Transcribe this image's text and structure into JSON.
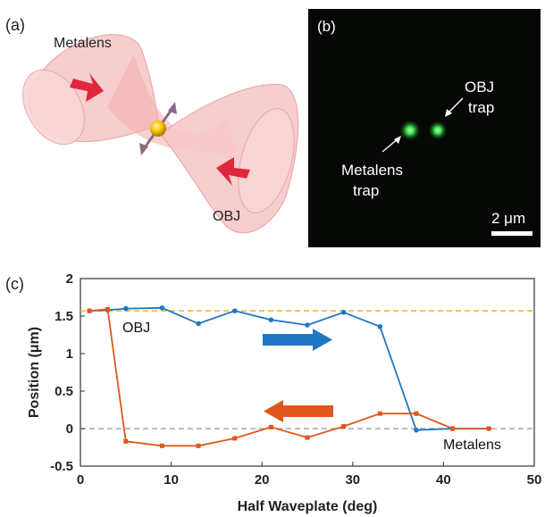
{
  "panels": {
    "a": {
      "label": "(a)",
      "metalens_label": "Metalens",
      "obj_label": "OBJ"
    },
    "b": {
      "label": "(b)",
      "obj_trap_label": [
        "OBJ",
        "trap"
      ],
      "metalens_trap_label": [
        "Metalens",
        "trap"
      ],
      "scale_bar_label": "2 μm"
    },
    "c": {
      "label": "(c)"
    }
  },
  "colors": {
    "obj_series": "#1f77c4",
    "metalens_series": "#e0561c",
    "obj_reference_line": "#f2b600",
    "metalens_reference_line": "#aaaaaa",
    "beam": "#f4b8b8",
    "arrow_red": "#e0283c",
    "trap_green": "#39e04a"
  },
  "chart_data": {
    "type": "line",
    "xlabel": "Half Waveplate (deg)",
    "ylabel": "Position (μm)",
    "xlim": [
      0,
      50
    ],
    "ylim": [
      -0.5,
      2
    ],
    "xticks": [
      0,
      10,
      20,
      30,
      40,
      50
    ],
    "yticks": [
      -0.5,
      0,
      0.5,
      1,
      1.5,
      2
    ],
    "xtick_labels": [
      "0",
      "10",
      "20",
      "30",
      "40",
      "50"
    ],
    "ytick_labels": [
      "-0.5",
      "0",
      "0.5",
      "1",
      "1.5",
      "2"
    ],
    "grid": false,
    "reference_lines": [
      {
        "y": 1.57,
        "style": "dashed",
        "color": "#f2b600"
      },
      {
        "y": 0,
        "style": "dashed",
        "color": "#aaaaaa"
      }
    ],
    "series": [
      {
        "name": "OBJ",
        "color": "#1f77c4",
        "marker": "circle",
        "x": [
          1,
          3,
          5,
          9,
          13,
          17,
          21,
          25,
          29,
          33,
          37,
          41,
          45
        ],
        "y": [
          1.57,
          1.58,
          1.6,
          1.61,
          1.4,
          1.57,
          1.45,
          1.38,
          1.55,
          1.36,
          -0.02,
          0.0,
          0.0
        ],
        "sweep_direction": "increasing"
      },
      {
        "name": "Metalens",
        "color": "#e0561c",
        "marker": "square",
        "x": [
          1,
          3,
          5,
          9,
          13,
          17,
          21,
          25,
          29,
          33,
          37,
          41,
          45
        ],
        "y": [
          1.57,
          1.59,
          -0.17,
          -0.23,
          -0.23,
          -0.13,
          0.02,
          -0.12,
          0.03,
          0.2,
          0.2,
          0.0,
          0.0
        ],
        "sweep_direction": "decreasing"
      }
    ]
  }
}
